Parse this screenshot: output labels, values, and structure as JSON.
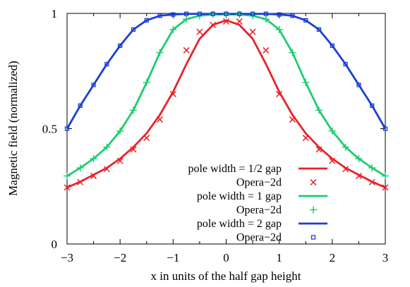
{
  "chart_data": {
    "type": "line",
    "title": "",
    "xlabel": "x in units of the half gap height",
    "ylabel": "Magnetic field (normalized)",
    "xlim": [
      -3,
      3
    ],
    "ylim": [
      0,
      1
    ],
    "grid": false,
    "legend_position": "bottom-right",
    "x_ticks": [
      "−3",
      "−2",
      "−1",
      "0",
      "1",
      "2",
      "3"
    ],
    "y_ticks": [
      "0",
      "0.5",
      "1"
    ],
    "series": [
      {
        "name": "pole width = 1/2 gap",
        "kind": "line",
        "color": "#e8232a",
        "x": [
          -3,
          -2.75,
          -2.5,
          -2.25,
          -2,
          -1.75,
          -1.5,
          -1.25,
          -1,
          -0.75,
          -0.5,
          -0.25,
          0,
          0.25,
          0.5,
          0.75,
          1,
          1.25,
          1.5,
          1.75,
          2,
          2.25,
          2.5,
          2.75,
          3
        ],
        "y": [
          0.245,
          0.27,
          0.3,
          0.33,
          0.37,
          0.42,
          0.48,
          0.56,
          0.66,
          0.78,
          0.89,
          0.95,
          0.97,
          0.95,
          0.89,
          0.78,
          0.66,
          0.56,
          0.48,
          0.42,
          0.37,
          0.33,
          0.3,
          0.27,
          0.245
        ]
      },
      {
        "name": "Opera−2d",
        "kind": "markers",
        "marker": "cross",
        "color": "#e8232a",
        "x": [
          -3,
          -2.75,
          -2.5,
          -2.25,
          -2,
          -1.75,
          -1.5,
          -1.25,
          -1,
          -0.75,
          -0.5,
          -0.25,
          0,
          0.25,
          0.5,
          0.75,
          1,
          1.25,
          1.5,
          1.75,
          2,
          2.25,
          2.5,
          2.75,
          3
        ],
        "y": [
          0.245,
          0.268,
          0.295,
          0.325,
          0.36,
          0.41,
          0.46,
          0.54,
          0.65,
          0.84,
          0.92,
          0.95,
          0.965,
          0.965,
          0.92,
          0.84,
          0.65,
          0.54,
          0.46,
          0.41,
          0.36,
          0.325,
          0.295,
          0.268,
          0.245
        ]
      },
      {
        "name": "pole width = 1 gap",
        "kind": "line",
        "color": "#1fcc70",
        "x": [
          -3,
          -2.75,
          -2.5,
          -2.25,
          -2,
          -1.75,
          -1.5,
          -1.25,
          -1,
          -0.75,
          -0.5,
          -0.25,
          0,
          0.25,
          0.5,
          0.75,
          1,
          1.25,
          1.5,
          1.75,
          2,
          2.25,
          2.5,
          2.75,
          3
        ],
        "y": [
          0.295,
          0.33,
          0.37,
          0.42,
          0.49,
          0.58,
          0.7,
          0.83,
          0.93,
          0.975,
          0.99,
          0.995,
          0.995,
          0.995,
          0.99,
          0.975,
          0.93,
          0.83,
          0.7,
          0.58,
          0.49,
          0.42,
          0.37,
          0.33,
          0.295
        ]
      },
      {
        "name": "Opera−2d",
        "kind": "markers",
        "marker": "plus",
        "color": "#1fcc70",
        "x": [
          -3,
          -2.75,
          -2.5,
          -2.25,
          -2,
          -1.75,
          -1.5,
          -1.25,
          -1,
          -0.75,
          -0.5,
          -0.25,
          0,
          0.25,
          0.5,
          0.75,
          1,
          1.25,
          1.5,
          1.75,
          2,
          2.25,
          2.5,
          2.75,
          3
        ],
        "y": [
          0.295,
          0.33,
          0.37,
          0.42,
          0.49,
          0.58,
          0.7,
          0.83,
          0.93,
          0.975,
          0.99,
          0.995,
          0.995,
          0.995,
          0.99,
          0.975,
          0.93,
          0.83,
          0.7,
          0.58,
          0.49,
          0.42,
          0.37,
          0.33,
          0.295
        ]
      },
      {
        "name": "pole width = 2 gap",
        "kind": "line",
        "color": "#1a3fd6",
        "x": [
          -3,
          -2.75,
          -2.5,
          -2.25,
          -2,
          -1.75,
          -1.5,
          -1.25,
          -1,
          -0.75,
          -0.5,
          -0.25,
          0,
          0.25,
          0.5,
          0.75,
          1,
          1.25,
          1.5,
          1.75,
          2,
          2.25,
          2.5,
          2.75,
          3
        ],
        "y": [
          0.5,
          0.6,
          0.69,
          0.78,
          0.86,
          0.93,
          0.97,
          0.99,
          0.995,
          0.998,
          0.998,
          0.998,
          0.998,
          0.998,
          0.998,
          0.998,
          0.995,
          0.99,
          0.97,
          0.93,
          0.86,
          0.78,
          0.69,
          0.6,
          0.5
        ]
      },
      {
        "name": "Opera−2d",
        "kind": "markers",
        "marker": "square",
        "color": "#1a3fd6",
        "x": [
          -3,
          -2.75,
          -2.5,
          -2.25,
          -2,
          -1.75,
          -1.5,
          -1.25,
          -1,
          -0.75,
          -0.5,
          -0.25,
          0,
          0.25,
          0.5,
          0.75,
          1,
          1.25,
          1.5,
          1.75,
          2,
          2.25,
          2.5,
          2.75,
          3
        ],
        "y": [
          0.5,
          0.6,
          0.69,
          0.78,
          0.86,
          0.93,
          0.97,
          0.99,
          0.995,
          0.998,
          0.998,
          0.998,
          0.998,
          0.998,
          0.998,
          0.998,
          0.995,
          0.99,
          0.97,
          0.93,
          0.86,
          0.78,
          0.69,
          0.6,
          0.5
        ]
      }
    ]
  }
}
